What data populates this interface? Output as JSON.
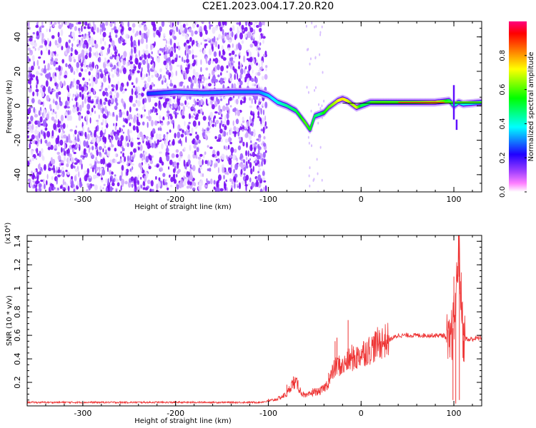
{
  "title": "C2E1.2023.004.17.20.R20",
  "chart_data": [
    {
      "type": "heatmap",
      "xlabel": "Height of straight line (km)",
      "ylabel": "Frequency (Hz)",
      "xlim": [
        -360,
        130
      ],
      "ylim": [
        -50,
        49
      ],
      "x_ticks": [
        -300,
        -200,
        -100,
        0,
        100
      ],
      "y_ticks": [
        -40,
        -20,
        0,
        20,
        40
      ],
      "colorbar": {
        "label": "Normalized spectral amplitude",
        "range": [
          0,
          1
        ],
        "ticks": [
          0.0,
          0.2,
          0.4,
          0.6,
          0.8
        ],
        "colors": [
          "#ffffff",
          "#ff00ff",
          "#8000ff",
          "#0000ff",
          "#00ffff",
          "#00ff00",
          "#ffff00",
          "#ff8000",
          "#ff0000",
          "#ff0080"
        ]
      },
      "noise_region": [
        -360,
        -102
      ],
      "ridge": {
        "x": [
          -230,
          -200,
          -170,
          -140,
          -110,
          -100,
          -90,
          -80,
          -70,
          -60,
          -55,
          -50,
          -45,
          -40,
          -35,
          -30,
          -25,
          -20,
          -15,
          -10,
          -5,
          0,
          10,
          20,
          40,
          60,
          80,
          95,
          100,
          105,
          110,
          130
        ],
        "y": [
          7,
          8,
          7.5,
          8,
          8,
          6,
          2,
          0,
          -3,
          -10,
          -14,
          -6,
          -5,
          -4,
          -1,
          1,
          3,
          4,
          3,
          1,
          -1,
          0,
          2,
          2,
          2,
          2,
          2,
          3,
          0,
          2,
          1,
          2
        ],
        "amplitude": [
          0.25,
          0.3,
          0.3,
          0.3,
          0.3,
          0.35,
          0.4,
          0.45,
          0.5,
          0.6,
          0.55,
          0.5,
          0.45,
          0.55,
          0.6,
          0.65,
          0.7,
          0.75,
          0.7,
          0.65,
          0.7,
          0.5,
          0.5,
          0.55,
          0.55,
          0.6,
          0.75,
          0.5,
          0.45,
          0.4,
          0.4,
          0.4
        ]
      }
    },
    {
      "type": "line",
      "xlabel": "Height of straight line (km)",
      "ylabel": "SNR (10 * v/v)",
      "y_multiplier": "(x10⁴)",
      "xlim": [
        -360,
        130
      ],
      "ylim": [
        0,
        1.45
      ],
      "x_ticks": [
        -300,
        -200,
        -100,
        0,
        100
      ],
      "y_ticks": [
        0.2,
        0.4,
        0.6,
        0.8,
        1.0,
        1.2,
        1.4
      ],
      "series": [
        {
          "color": "#ee3333",
          "x": [
            -360,
            -110,
            -100,
            -90,
            -80,
            -75,
            -70,
            -65,
            -60,
            -55,
            -50,
            -45,
            -40,
            -35,
            -30,
            -25,
            -20,
            -15,
            -10,
            -5,
            0,
            10,
            20,
            30,
            40,
            60,
            80,
            90,
            95,
            100,
            103,
            105,
            108,
            110,
            115,
            120,
            130
          ],
          "y": [
            0.03,
            0.03,
            0.04,
            0.06,
            0.1,
            0.18,
            0.2,
            0.12,
            0.08,
            0.1,
            0.12,
            0.12,
            0.15,
            0.2,
            0.3,
            0.35,
            0.33,
            0.38,
            0.4,
            0.4,
            0.45,
            0.48,
            0.54,
            0.56,
            0.6,
            0.6,
            0.6,
            0.6,
            0.5,
            0.7,
            1.0,
            1.38,
            0.9,
            0.6,
            0.56,
            0.57,
            0.58
          ],
          "spikes": [
            {
              "x": -100,
              "y": 0.06
            },
            {
              "x": -80,
              "y": 0.18
            },
            {
              "x": -73,
              "y": 0.25
            },
            {
              "x": -68,
              "y": 0.22
            },
            {
              "x": -52,
              "y": 0.15
            },
            {
              "x": -35,
              "y": 0.28
            },
            {
              "x": -28,
              "y": 0.55
            },
            {
              "x": -26,
              "y": 0.58
            },
            {
              "x": -14,
              "y": 0.73
            },
            {
              "x": -10,
              "y": 0.52
            },
            {
              "x": -5,
              "y": 0.5
            },
            {
              "x": 95,
              "y": 0.72
            },
            {
              "x": 99,
              "y": 0.05
            },
            {
              "x": 100,
              "y": 1.1
            },
            {
              "x": 102,
              "y": 0.02
            },
            {
              "x": 104,
              "y": 1.05
            },
            {
              "x": 105,
              "y": 1.45
            },
            {
              "x": 106,
              "y": 0.05
            },
            {
              "x": 107,
              "y": 0.95
            },
            {
              "x": 110,
              "y": 0.7
            }
          ]
        }
      ]
    }
  ]
}
